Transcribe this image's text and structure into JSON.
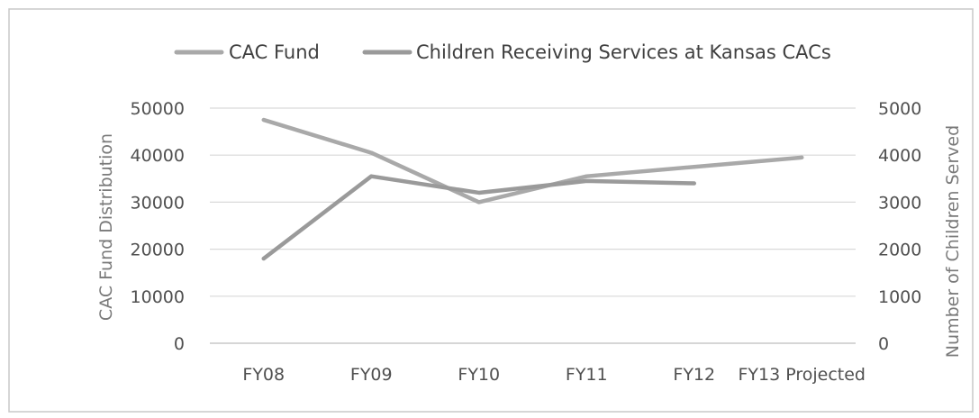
{
  "chart_data": {
    "type": "line",
    "categories": [
      "FY08",
      "FY09",
      "FY10",
      "FY11",
      "FY12",
      "FY13 Projected"
    ],
    "series": [
      {
        "name": "CAC Fund",
        "axis": "left",
        "values": [
          47500,
          40500,
          30000,
          35500,
          37500,
          39500
        ],
        "color": "#a9a9a9"
      },
      {
        "name": "Children Receiving Services at Kansas CACs",
        "axis": "right",
        "values": [
          1800,
          3550,
          3200,
          3450,
          3400,
          null
        ],
        "color": "#9a9a9a"
      }
    ],
    "y_left": {
      "label": "CAC Fund Distribution",
      "ylim": [
        0,
        50000
      ],
      "ticks": [
        "0",
        "10000",
        "20000",
        "30000",
        "40000",
        "50000"
      ]
    },
    "y_right": {
      "label": "Number of Children Served",
      "ylim": [
        0,
        5000
      ],
      "ticks": [
        "0",
        "1000",
        "2000",
        "3000",
        "4000",
        "5000"
      ]
    },
    "grid": true,
    "legend_position": "top"
  }
}
